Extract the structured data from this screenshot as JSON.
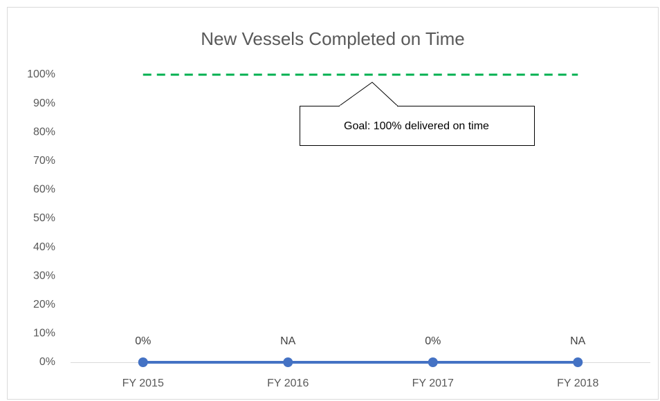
{
  "chart_data": {
    "type": "line",
    "title": "New Vessels Completed on Time",
    "categories": [
      "FY 2015",
      "FY 2016",
      "FY 2017",
      "FY 2018"
    ],
    "series": [
      {
        "name": "Completed on Time",
        "color": "#4472c4",
        "values": [
          0,
          0,
          0,
          0
        ],
        "value_labels": [
          "0%",
          "NA",
          "0%",
          "NA"
        ]
      },
      {
        "name": "Goal",
        "color": "#00b050",
        "values": [
          100,
          100,
          100,
          100
        ],
        "dashed": true
      }
    ],
    "annotation": "Goal: 100% delivered on time",
    "ylim": [
      0,
      100
    ],
    "yticks": [
      {
        "value": 0,
        "label": "0%"
      },
      {
        "value": 10,
        "label": "10%"
      },
      {
        "value": 20,
        "label": "20%"
      },
      {
        "value": 30,
        "label": "30%"
      },
      {
        "value": 40,
        "label": "40%"
      },
      {
        "value": 50,
        "label": "50%"
      },
      {
        "value": 60,
        "label": "60%"
      },
      {
        "value": 70,
        "label": "70%"
      },
      {
        "value": 80,
        "label": "80%"
      },
      {
        "value": 90,
        "label": "90%"
      },
      {
        "value": 100,
        "label": "100%"
      }
    ],
    "grid": false,
    "legend": false
  }
}
